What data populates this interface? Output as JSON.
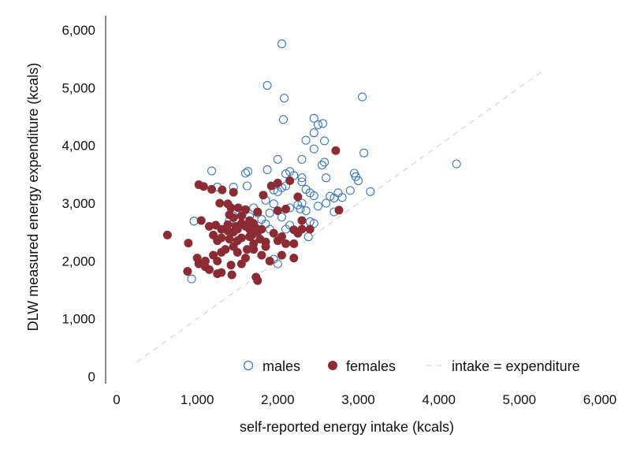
{
  "chart_data": {
    "type": "scatter",
    "title": "",
    "xlabel": "self-reported energy intake (kcals)",
    "ylabel": "DLW measured energy expenditure (kcals)",
    "xlim": [
      0,
      6000
    ],
    "ylim": [
      0,
      6000
    ],
    "x_ticks": [
      "0",
      "1,000",
      "2,000",
      "3,000",
      "4,000",
      "5,000",
      "6,000"
    ],
    "y_ticks": [
      "0",
      "1,000",
      "2,000",
      "3,000",
      "4,000",
      "5,000",
      "6,000"
    ],
    "grid": false,
    "legend_position": "bottom-right",
    "series": [
      {
        "name": "males",
        "marker": "open-circle",
        "color": "#3a78b8",
        "points": [
          [
            2050,
            5760
          ],
          [
            1870,
            5040
          ],
          [
            2080,
            4820
          ],
          [
            3050,
            4840
          ],
          [
            2070,
            4450
          ],
          [
            2450,
            4470
          ],
          [
            2500,
            4360
          ],
          [
            2560,
            4380
          ],
          [
            2450,
            4220
          ],
          [
            2350,
            4090
          ],
          [
            2580,
            4080
          ],
          [
            2450,
            3940
          ],
          [
            3070,
            3870
          ],
          [
            2000,
            3760
          ],
          [
            2300,
            3760
          ],
          [
            2550,
            3660
          ],
          [
            2580,
            3710
          ],
          [
            1870,
            3580
          ],
          [
            1630,
            3550
          ],
          [
            1600,
            3520
          ],
          [
            1180,
            3560
          ],
          [
            2150,
            3550
          ],
          [
            2100,
            3510
          ],
          [
            2200,
            3480
          ],
          [
            2300,
            3440
          ],
          [
            2600,
            3440
          ],
          [
            2950,
            3520
          ],
          [
            2970,
            3460
          ],
          [
            3000,
            3390
          ],
          [
            2100,
            3300
          ],
          [
            2050,
            3270
          ],
          [
            2350,
            3240
          ],
          [
            2300,
            3370
          ],
          [
            1950,
            3230
          ],
          [
            2000,
            3200
          ],
          [
            1250,
            3280
          ],
          [
            1620,
            3300
          ],
          [
            1450,
            3280
          ],
          [
            2400,
            3180
          ],
          [
            2450,
            3130
          ],
          [
            2750,
            3180
          ],
          [
            2650,
            3120
          ],
          [
            2700,
            3090
          ],
          [
            2800,
            3100
          ],
          [
            2900,
            3220
          ],
          [
            3150,
            3200
          ],
          [
            2600,
            3000
          ],
          [
            2300,
            3000
          ],
          [
            2250,
            2970
          ],
          [
            2150,
            2920
          ],
          [
            2280,
            2900
          ],
          [
            2350,
            2870
          ],
          [
            1700,
            2920
          ],
          [
            1850,
            3050
          ],
          [
            1950,
            2990
          ],
          [
            2500,
            2950
          ],
          [
            1750,
            2830
          ],
          [
            1650,
            2770
          ],
          [
            2050,
            2760
          ],
          [
            1850,
            2640
          ],
          [
            1900,
            2550
          ],
          [
            2100,
            2550
          ],
          [
            2150,
            2620
          ],
          [
            2400,
            2680
          ],
          [
            2700,
            2850
          ],
          [
            1800,
            2720
          ],
          [
            2450,
            2650
          ],
          [
            2380,
            2420
          ],
          [
            1450,
            2780
          ],
          [
            1400,
            2700
          ],
          [
            1950,
            2030
          ],
          [
            2000,
            1950
          ],
          [
            960,
            2690
          ],
          [
            930,
            1690
          ],
          [
            1900,
            2830
          ],
          [
            4220,
            3680
          ]
        ]
      },
      {
        "name": "females",
        "marker": "filled-circle",
        "color": "#8b2c35",
        "points": [
          [
            630,
            2450
          ],
          [
            890,
            2310
          ],
          [
            880,
            1820
          ],
          [
            1020,
            3320
          ],
          [
            1080,
            3290
          ],
          [
            1180,
            3240
          ],
          [
            1310,
            3230
          ],
          [
            1450,
            3190
          ],
          [
            1820,
            3140
          ],
          [
            1920,
            3300
          ],
          [
            2000,
            3350
          ],
          [
            2150,
            3390
          ],
          [
            2250,
            3110
          ],
          [
            2720,
            3910
          ],
          [
            2760,
            2880
          ],
          [
            1280,
            3000
          ],
          [
            1380,
            2990
          ],
          [
            1420,
            2920
          ],
          [
            1510,
            2920
          ],
          [
            1600,
            2890
          ],
          [
            1750,
            2850
          ],
          [
            2000,
            2870
          ],
          [
            2100,
            2900
          ],
          [
            1050,
            2700
          ],
          [
            1150,
            2600
          ],
          [
            1230,
            2620
          ],
          [
            1400,
            2800
          ],
          [
            1450,
            2750
          ],
          [
            1550,
            2780
          ],
          [
            1650,
            2700
          ],
          [
            1700,
            2650
          ],
          [
            1300,
            2550
          ],
          [
            1380,
            2520
          ],
          [
            1450,
            2500
          ],
          [
            1500,
            2550
          ],
          [
            1600,
            2600
          ],
          [
            1650,
            2550
          ],
          [
            1750,
            2500
          ],
          [
            1800,
            2550
          ],
          [
            1950,
            2480
          ],
          [
            2050,
            2420
          ],
          [
            2200,
            2540
          ],
          [
            2250,
            2480
          ],
          [
            2300,
            2550
          ],
          [
            1200,
            2450
          ],
          [
            1250,
            2350
          ],
          [
            1300,
            2400
          ],
          [
            1400,
            2380
          ],
          [
            1500,
            2350
          ],
          [
            1550,
            2400
          ],
          [
            1650,
            2420
          ],
          [
            1700,
            2300
          ],
          [
            1850,
            2330
          ],
          [
            2000,
            2350
          ],
          [
            2100,
            2300
          ],
          [
            2200,
            2300
          ],
          [
            1000,
            2050
          ],
          [
            1100,
            2000
          ],
          [
            1200,
            2100
          ],
          [
            1250,
            2000
          ],
          [
            1300,
            2150
          ],
          [
            1350,
            2200
          ],
          [
            1450,
            2250
          ],
          [
            1500,
            2150
          ],
          [
            1600,
            2050
          ],
          [
            1700,
            2200
          ],
          [
            1800,
            2100
          ],
          [
            1900,
            2000
          ],
          [
            2050,
            2100
          ],
          [
            2200,
            2050
          ],
          [
            1020,
            1950
          ],
          [
            1100,
            1900
          ],
          [
            1150,
            1850
          ],
          [
            1250,
            1780
          ],
          [
            1300,
            1800
          ],
          [
            1420,
            1930
          ],
          [
            1430,
            1760
          ],
          [
            1730,
            1720
          ],
          [
            1750,
            1660
          ],
          [
            1550,
            1950
          ],
          [
            1620,
            2200
          ],
          [
            1680,
            2450
          ],
          [
            1780,
            2380
          ],
          [
            1850,
            2250
          ],
          [
            2300,
            2700
          ],
          [
            2400,
            2550
          ],
          [
            1550,
            2650
          ],
          [
            1480,
            2600
          ],
          [
            1380,
            2630
          ],
          [
            1720,
            2580
          ]
        ]
      },
      {
        "name": "intake = expenditure",
        "marker": "dashed-line",
        "color": "#c8cdd3",
        "points": [
          [
            250,
            250
          ],
          [
            5300,
            5300
          ]
        ]
      }
    ]
  }
}
